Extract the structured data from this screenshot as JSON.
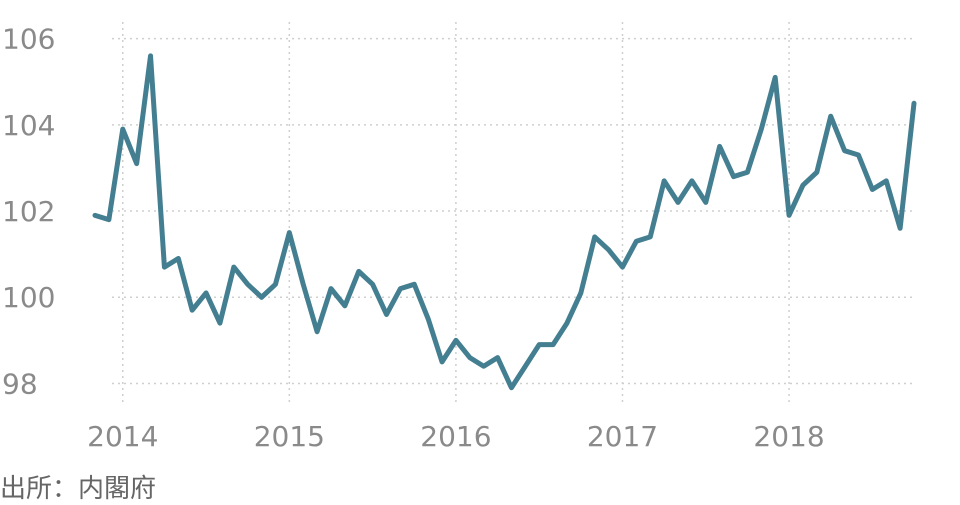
{
  "chart_data": {
    "type": "line",
    "title": "",
    "xlabel": "",
    "ylabel": "",
    "x_start": "2013-11",
    "x_tick_labels": [
      "2014",
      "2015",
      "2016",
      "2017",
      "2018"
    ],
    "y_ticks": [
      98,
      100,
      102,
      104,
      106
    ],
    "y_tick_labels": [
      "98",
      "100",
      "102",
      "104",
      "106"
    ],
    "ylim": [
      97.5,
      106.2
    ],
    "grid": true,
    "line_color": "#447f91",
    "series": [
      {
        "values": [
          101.9,
          101.8,
          103.9,
          103.1,
          105.6,
          100.7,
          100.9,
          99.7,
          100.1,
          99.4,
          100.7,
          100.3,
          100.0,
          100.3,
          101.5,
          100.3,
          99.2,
          100.2,
          99.8,
          100.6,
          100.3,
          99.6,
          100.2,
          100.3,
          99.5,
          98.5,
          99.0,
          98.6,
          98.4,
          98.6,
          97.9,
          98.4,
          98.9,
          98.9,
          99.4,
          100.1,
          101.4,
          101.1,
          100.7,
          101.3,
          101.4,
          102.7,
          102.2,
          102.7,
          102.2,
          103.5,
          102.8,
          102.9,
          103.9,
          105.1,
          101.9,
          102.6,
          102.9,
          104.2,
          103.4,
          103.3,
          102.5,
          102.7,
          101.6,
          104.5
        ]
      }
    ]
  },
  "source_text": "出所：内閣府"
}
